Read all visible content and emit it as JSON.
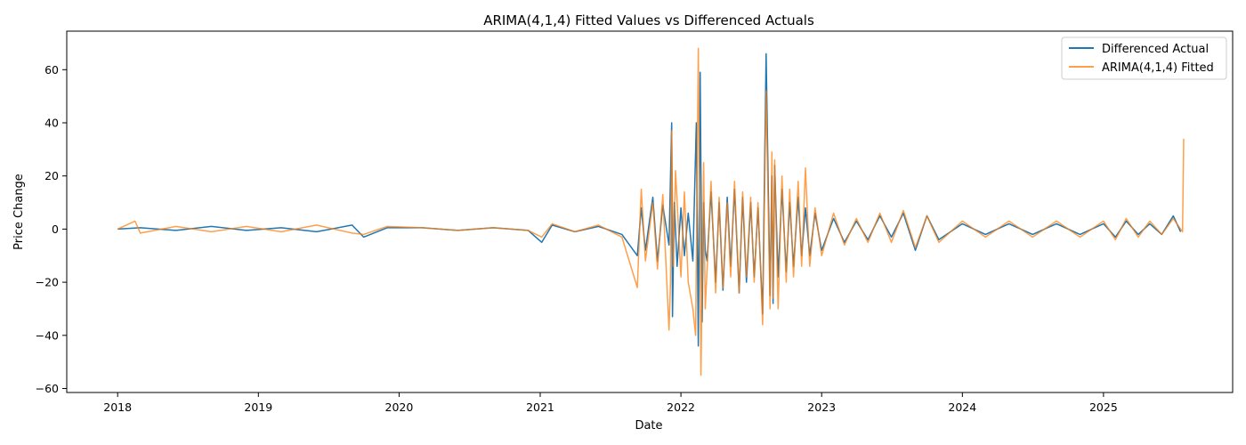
{
  "chart_data": {
    "type": "line",
    "title": "ARIMA(4,1,4) Fitted Values vs Differenced Actuals",
    "xlabel": "Date",
    "ylabel": "Price Change",
    "xlim": [
      "2017-08-22",
      "2025-12-02"
    ],
    "ylim": [
      -61.5,
      74.5
    ],
    "xticks": [
      "2018",
      "2019",
      "2020",
      "2021",
      "2022",
      "2023",
      "2024",
      "2025"
    ],
    "yticks": [
      -60,
      -40,
      -20,
      0,
      20,
      40,
      60
    ],
    "ytick_labels": [
      "−60",
      "−40",
      "−20",
      "0",
      "20",
      "40",
      "60"
    ],
    "grid": false,
    "legend_position": "top-right",
    "colors": {
      "actual": "#1f77b4",
      "fitted": "#ff7f0e"
    },
    "series": [
      {
        "name": "Differenced Actual",
        "x": [
          "2018-01-01",
          "2018-03-01",
          "2018-06-01",
          "2018-09-01",
          "2018-12-01",
          "2019-03-01",
          "2019-06-01",
          "2019-09-01",
          "2019-10-01",
          "2019-12-01",
          "2020-03-01",
          "2020-06-01",
          "2020-09-01",
          "2020-12-01",
          "2021-01-05",
          "2021-02-01",
          "2021-04-01",
          "2021-06-01",
          "2021-08-01",
          "2021-09-10",
          "2021-09-20",
          "2021-10-01",
          "2021-10-20",
          "2021-11-01",
          "2021-11-15",
          "2021-12-01",
          "2021-12-08",
          "2021-12-10",
          "2021-12-15",
          "2021-12-22",
          "2022-01-01",
          "2022-01-10",
          "2022-01-20",
          "2022-02-01",
          "2022-02-10",
          "2022-02-15",
          "2022-02-20",
          "2022-02-25",
          "2022-03-01",
          "2022-03-05",
          "2022-03-10",
          "2022-03-20",
          "2022-04-01",
          "2022-04-10",
          "2022-04-20",
          "2022-05-01",
          "2022-05-10",
          "2022-05-20",
          "2022-06-01",
          "2022-06-10",
          "2022-06-20",
          "2022-07-01",
          "2022-07-10",
          "2022-07-20",
          "2022-08-01",
          "2022-08-10",
          "2022-08-20",
          "2022-08-25",
          "2022-08-28",
          "2022-09-01",
          "2022-09-10",
          "2022-09-20",
          "2022-10-01",
          "2022-10-10",
          "2022-10-20",
          "2022-11-01",
          "2022-11-10",
          "2022-11-20",
          "2022-12-01",
          "2022-12-15",
          "2023-01-01",
          "2023-02-01",
          "2023-03-01",
          "2023-04-01",
          "2023-05-01",
          "2023-06-01",
          "2023-07-01",
          "2023-08-01",
          "2023-09-01",
          "2023-10-01",
          "2023-11-01",
          "2024-01-01",
          "2024-03-01",
          "2024-05-01",
          "2024-07-01",
          "2024-09-01",
          "2024-11-01",
          "2025-01-01",
          "2025-02-01",
          "2025-03-01",
          "2025-04-01",
          "2025-05-01",
          "2025-06-01",
          "2025-07-01",
          "2025-07-20"
        ],
        "y": [
          0,
          0.5,
          -0.5,
          1,
          -0.5,
          0.5,
          -1,
          1.5,
          -3,
          0.5,
          0.5,
          -0.5,
          0.5,
          -0.5,
          -5,
          1.5,
          -1,
          1,
          -2,
          -10,
          8,
          -8,
          12,
          -12,
          9,
          -6,
          40,
          -33,
          10,
          -14,
          8,
          -10,
          6,
          -12,
          40,
          -44,
          59,
          -35,
          10,
          -8,
          -12,
          14,
          -20,
          10,
          -23,
          12,
          -14,
          15,
          -24,
          12,
          -20,
          10,
          -18,
          8,
          -32,
          66,
          -25,
          20,
          -28,
          24,
          -18,
          15,
          -16,
          10,
          -14,
          12,
          -10,
          8,
          -10,
          6,
          -8,
          4,
          -5,
          3,
          -4,
          5,
          -3,
          6,
          -8,
          5,
          -4,
          2,
          -2,
          2,
          -2,
          2,
          -2,
          2,
          -3,
          3,
          -2,
          2,
          -2,
          5,
          -1
        ]
      },
      {
        "name": "ARIMA(4,1,4) Fitted",
        "x": [
          "2018-01-01",
          "2018-02-15",
          "2018-03-01",
          "2018-06-01",
          "2018-09-01",
          "2018-12-01",
          "2019-03-01",
          "2019-06-01",
          "2019-09-01",
          "2019-10-01",
          "2019-12-01",
          "2020-03-01",
          "2020-06-01",
          "2020-09-01",
          "2020-12-01",
          "2021-01-05",
          "2021-02-01",
          "2021-04-01",
          "2021-06-01",
          "2021-08-01",
          "2021-09-10",
          "2021-09-20",
          "2021-10-01",
          "2021-10-20",
          "2021-11-01",
          "2021-11-15",
          "2021-12-01",
          "2021-12-05",
          "2021-12-08",
          "2021-12-12",
          "2021-12-18",
          "2022-01-01",
          "2022-01-10",
          "2022-01-20",
          "2022-02-01",
          "2022-02-08",
          "2022-02-15",
          "2022-02-22",
          "2022-03-01",
          "2022-03-05",
          "2022-03-10",
          "2022-03-20",
          "2022-04-01",
          "2022-04-10",
          "2022-04-20",
          "2022-05-01",
          "2022-05-10",
          "2022-05-20",
          "2022-06-01",
          "2022-06-10",
          "2022-06-20",
          "2022-07-01",
          "2022-07-10",
          "2022-07-20",
          "2022-08-01",
          "2022-08-10",
          "2022-08-20",
          "2022-08-25",
          "2022-08-28",
          "2022-09-01",
          "2022-09-10",
          "2022-09-20",
          "2022-10-01",
          "2022-10-10",
          "2022-10-20",
          "2022-11-01",
          "2022-11-10",
          "2022-11-20",
          "2022-12-01",
          "2022-12-15",
          "2023-01-01",
          "2023-02-01",
          "2023-03-01",
          "2023-04-01",
          "2023-05-01",
          "2023-06-01",
          "2023-07-01",
          "2023-08-01",
          "2023-09-01",
          "2023-10-01",
          "2023-11-01",
          "2024-01-01",
          "2024-03-01",
          "2024-05-01",
          "2024-07-01",
          "2024-09-01",
          "2024-11-01",
          "2025-01-01",
          "2025-02-01",
          "2025-03-01",
          "2025-04-01",
          "2025-05-01",
          "2025-06-01",
          "2025-07-01",
          "2025-07-25",
          "2025-07-28"
        ],
        "y": [
          0,
          3,
          -1.5,
          1,
          -1,
          1,
          -1,
          1.5,
          -1.5,
          -2,
          1,
          0.5,
          -0.5,
          0.5,
          -0.5,
          -3,
          2,
          -1,
          1.5,
          -3,
          -22,
          15,
          -12,
          10,
          -15,
          13,
          -38,
          -20,
          37,
          -14,
          22,
          -18,
          14,
          -20,
          -30,
          -40,
          68,
          -55,
          25,
          -30,
          -15,
          18,
          -24,
          12,
          -22,
          10,
          -18,
          18,
          -24,
          14,
          -18,
          12,
          -20,
          10,
          -36,
          52,
          -30,
          29,
          -26,
          26,
          -30,
          20,
          -20,
          15,
          -18,
          18,
          -14,
          23,
          -14,
          8,
          -10,
          6,
          -6,
          4,
          -5,
          6,
          -5,
          7,
          -7,
          5,
          -5,
          3,
          -3,
          3,
          -3,
          3,
          -3,
          3,
          -4,
          4,
          -3,
          3,
          -2,
          4,
          -1,
          34
        ]
      }
    ]
  }
}
